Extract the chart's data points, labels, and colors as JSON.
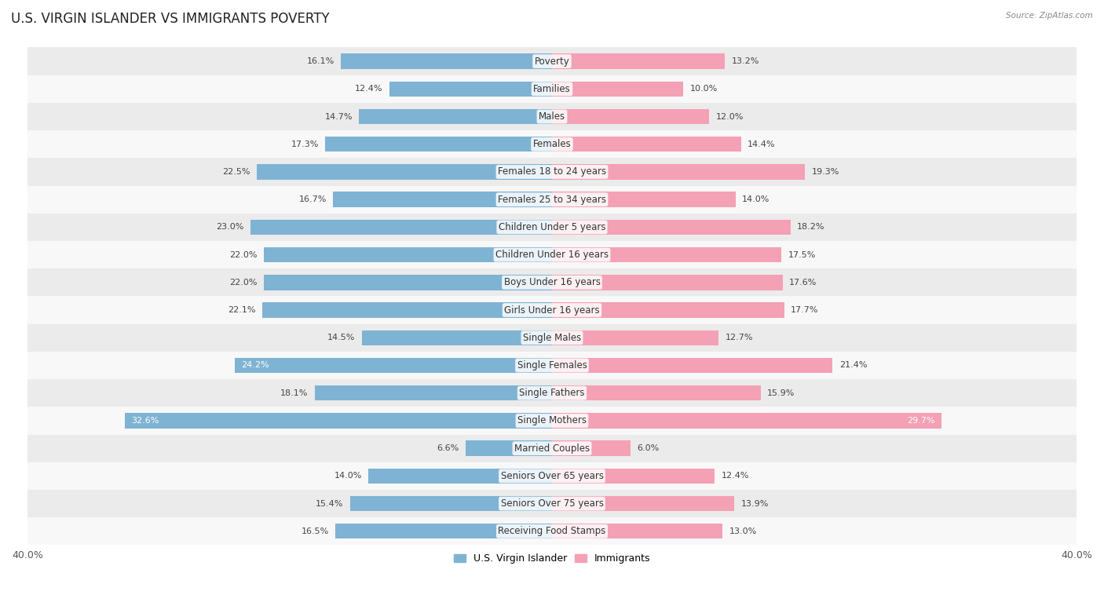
{
  "title": "U.S. VIRGIN ISLANDER VS IMMIGRANTS POVERTY",
  "source": "Source: ZipAtlas.com",
  "categories": [
    "Poverty",
    "Families",
    "Males",
    "Females",
    "Females 18 to 24 years",
    "Females 25 to 34 years",
    "Children Under 5 years",
    "Children Under 16 years",
    "Boys Under 16 years",
    "Girls Under 16 years",
    "Single Males",
    "Single Females",
    "Single Fathers",
    "Single Mothers",
    "Married Couples",
    "Seniors Over 65 years",
    "Seniors Over 75 years",
    "Receiving Food Stamps"
  ],
  "virgin_islander": [
    16.1,
    12.4,
    14.7,
    17.3,
    22.5,
    16.7,
    23.0,
    22.0,
    22.0,
    22.1,
    14.5,
    24.2,
    18.1,
    32.6,
    6.6,
    14.0,
    15.4,
    16.5
  ],
  "immigrants": [
    13.2,
    10.0,
    12.0,
    14.4,
    19.3,
    14.0,
    18.2,
    17.5,
    17.6,
    17.7,
    12.7,
    21.4,
    15.9,
    29.7,
    6.0,
    12.4,
    13.9,
    13.0
  ],
  "vi_color": "#7fb3d3",
  "imm_color": "#f4a0b5",
  "vi_label": "U.S. Virgin Islander",
  "imm_label": "Immigrants",
  "xlim": 40.0,
  "row_bg_even": "#ebebeb",
  "row_bg_odd": "#f8f8f8",
  "bar_bg": "#ffffff",
  "title_fontsize": 12,
  "label_fontsize": 8.5,
  "value_fontsize": 8,
  "bar_height": 0.55
}
